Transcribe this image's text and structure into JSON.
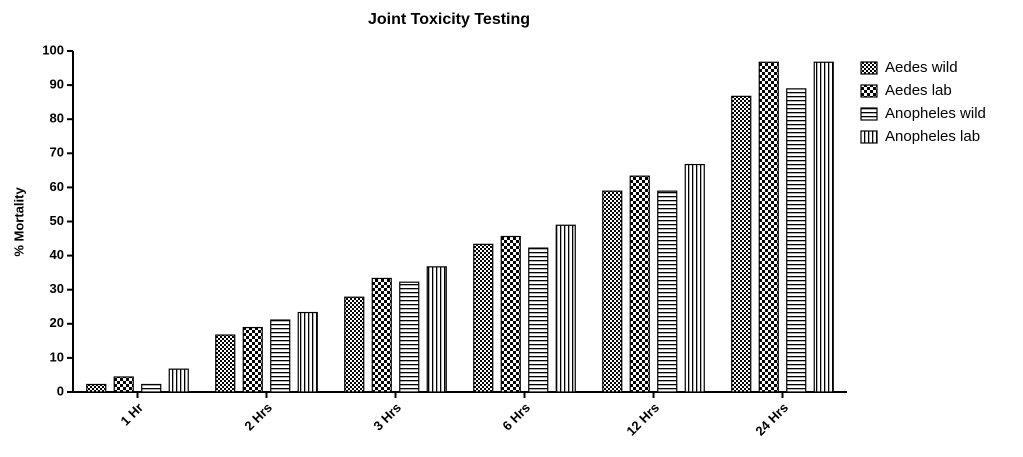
{
  "chart_data": {
    "type": "bar",
    "title": "Joint Toxicity Testing",
    "y_label": "% Mortality",
    "categories": [
      "1 Hr",
      "2 Hrs",
      "3 Hrs",
      "6 Hrs",
      "12 Hrs",
      "24 Hrs"
    ],
    "series": [
      {
        "name": "Aedes wild",
        "color": "#000000",
        "values": [
          2.2,
          16.7,
          27.8,
          43.3,
          58.9,
          86.7
        ]
      },
      {
        "name": "Aedes lab",
        "color": "#000000",
        "values": [
          4.4,
          18.9,
          33.3,
          45.6,
          63.3,
          96.7
        ]
      },
      {
        "name": "Anopheles wild",
        "color": "#000000",
        "values": [
          2.2,
          21.1,
          32.2,
          42.2,
          58.9,
          88.9
        ]
      },
      {
        "name": "Anopheles lab",
        "color": "#000000",
        "values": [
          6.7,
          23.3,
          36.7,
          48.9,
          66.7,
          96.7
        ]
      }
    ],
    "ylim": [
      0,
      100
    ],
    "yticks": [
      0,
      10,
      20,
      30,
      40,
      50,
      60,
      70,
      80,
      90,
      100
    ],
    "legend": "right"
  }
}
